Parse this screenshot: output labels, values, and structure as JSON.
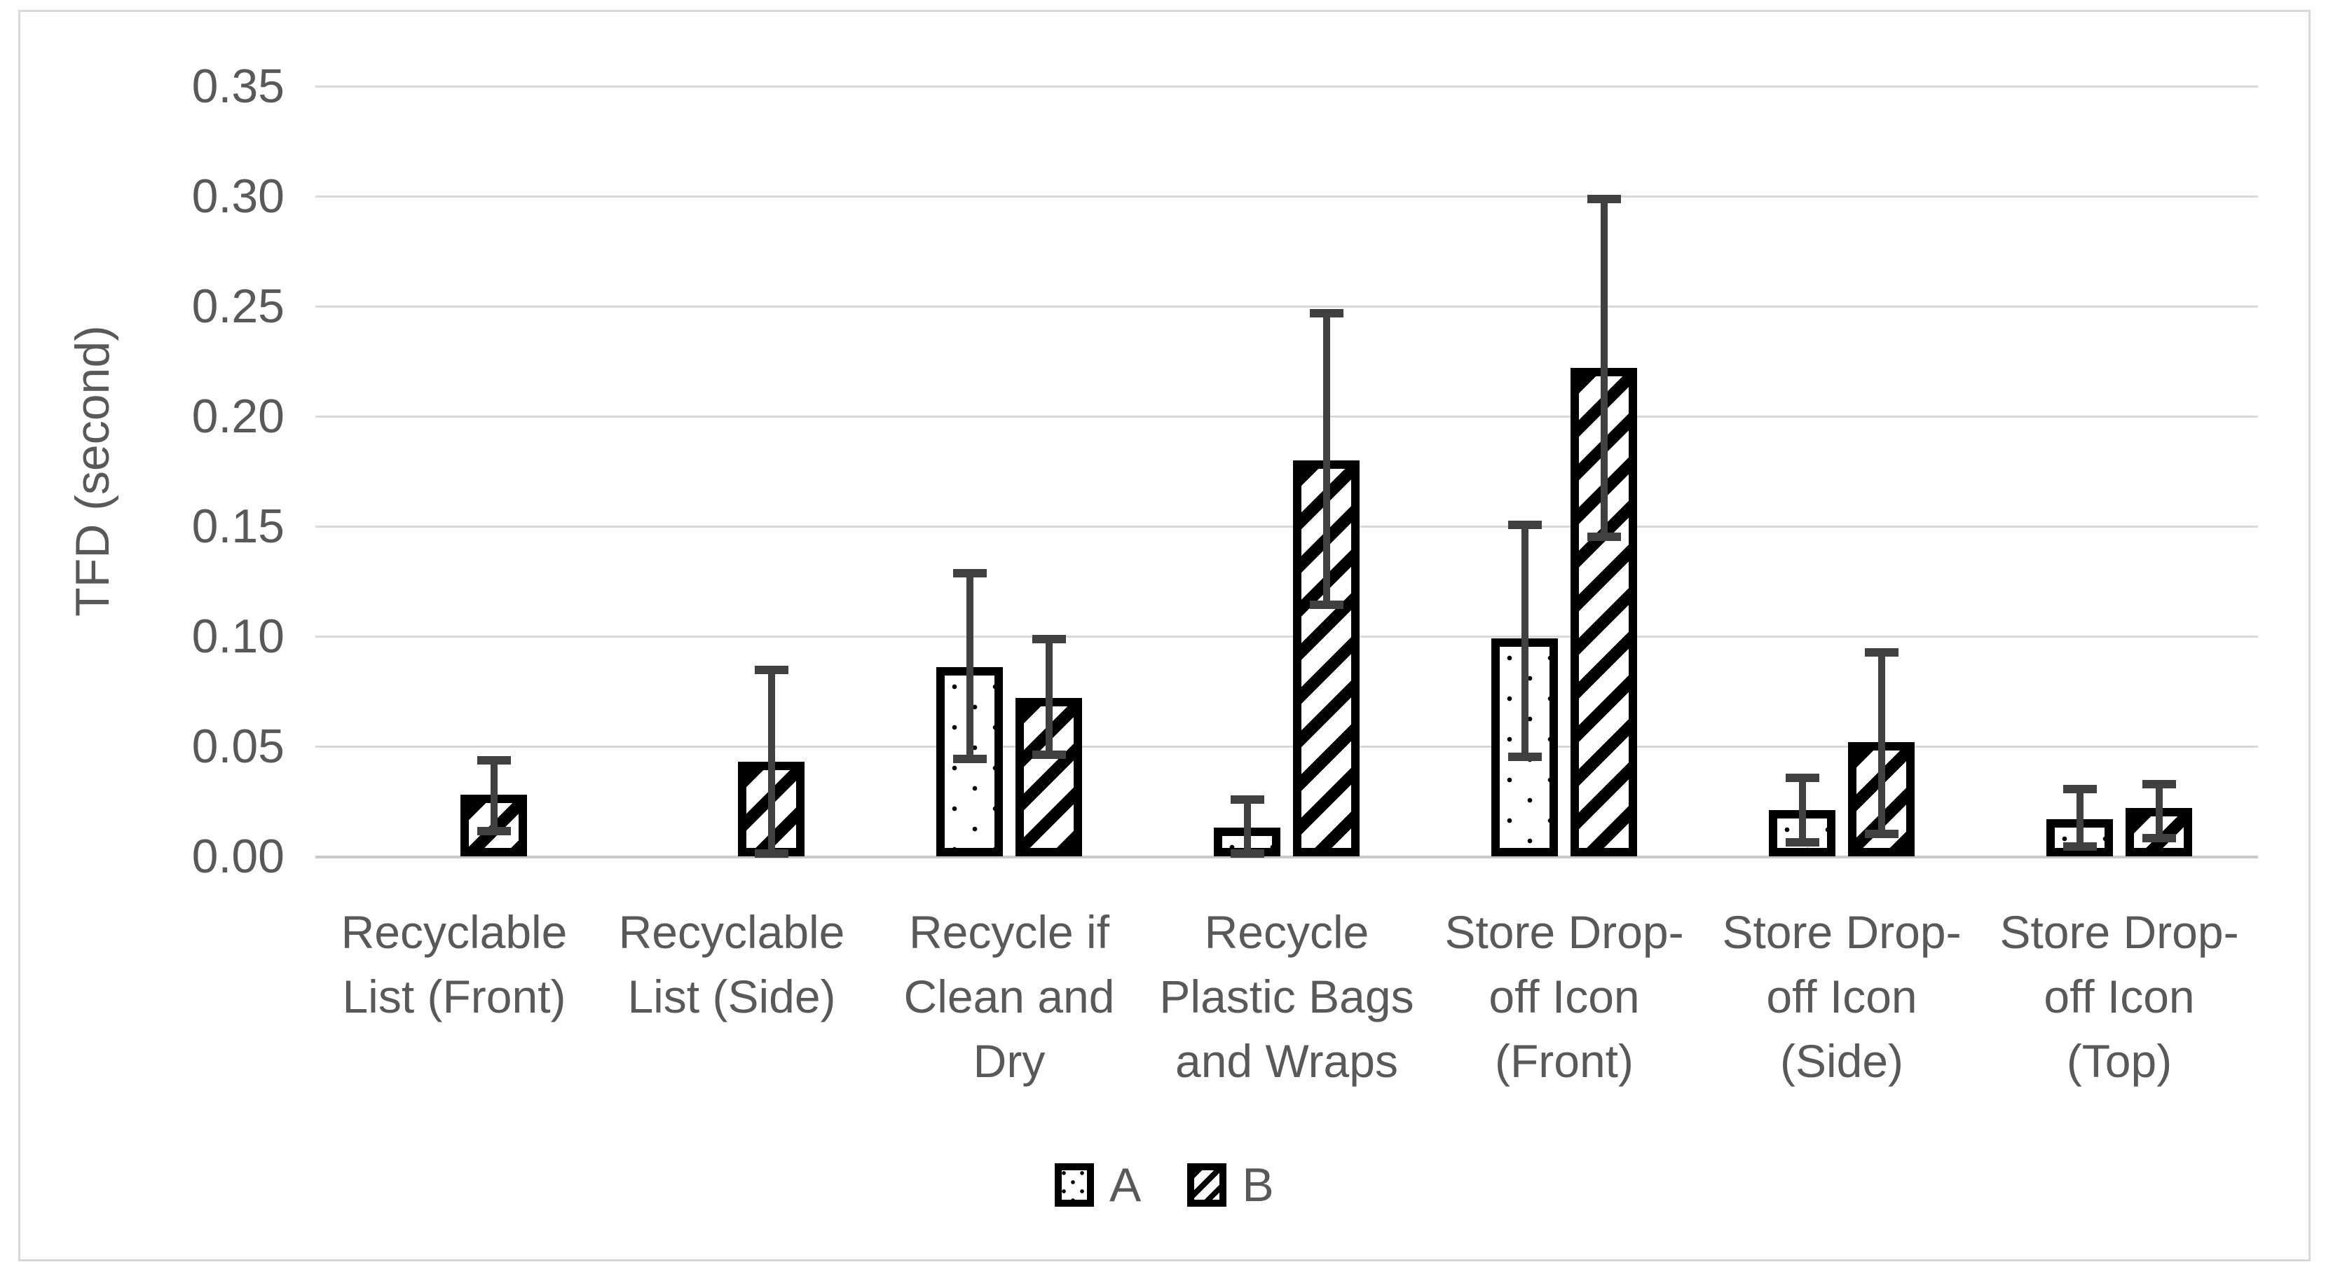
{
  "colors": {
    "background": "#ffffff",
    "frame_border": "#d9d9d9",
    "gridline": "#d9d9d9",
    "axis_text": "#595959",
    "bar_outline": "#000000",
    "error_bar": "#404040"
  },
  "chart_data": {
    "type": "bar",
    "title": "",
    "xlabel": "",
    "ylabel": "TFD (second)",
    "ylim": [
      0,
      0.35
    ],
    "ytick_step": 0.05,
    "yticks": [
      "0.35",
      "0.30",
      "0.25",
      "0.20",
      "0.15",
      "0.10",
      "0.05",
      "0.00"
    ],
    "grid": true,
    "legend_position": "bottom-center",
    "categories": [
      "Recyclable\nList (Front)",
      "Recyclable\nList (Side)",
      "Recycle if\nClean and\nDry",
      "Recycle\nPlastic Bags\nand Wraps",
      "Store Drop-\noff Icon\n(Front)",
      "Store Drop-\noff Icon\n(Side)",
      "Store Drop-\noff Icon\n(Top)"
    ],
    "series": [
      {
        "name": "A",
        "pattern": "dots",
        "values": [
          0,
          0,
          0.086,
          0.013,
          0.099,
          0.021,
          0.017
        ],
        "error_low": [
          null,
          null,
          0.044,
          0.001,
          0.045,
          0.006,
          0.004
        ],
        "error_high": [
          null,
          null,
          0.129,
          0.026,
          0.151,
          0.036,
          0.031
        ]
      },
      {
        "name": "B",
        "pattern": "hatch",
        "values": [
          0.028,
          0.043,
          0.072,
          0.18,
          0.222,
          0.052,
          0.022
        ],
        "error_low": [
          0.011,
          0.001,
          0.046,
          0.114,
          0.145,
          0.01,
          0.008
        ],
        "error_high": [
          0.044,
          0.085,
          0.099,
          0.247,
          0.299,
          0.093,
          0.033
        ]
      }
    ]
  }
}
